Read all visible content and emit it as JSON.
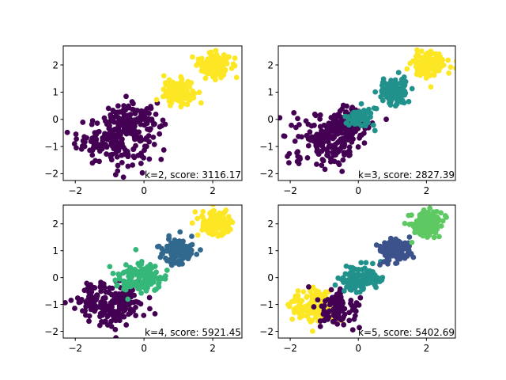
{
  "chart_data": [
    {
      "type": "scatter",
      "k": 2,
      "annotation": "k=2, score: 3116.17",
      "xlim": [
        -2.35,
        2.85
      ],
      "ylim": [
        -2.25,
        2.7
      ],
      "xticks": [
        -2,
        0,
        2
      ],
      "xtick_labels": [
        "−2",
        "0",
        "2"
      ],
      "yticks": [
        -2,
        -1,
        0,
        1,
        2
      ],
      "ytick_labels": [
        "−2",
        "−1",
        "0",
        "1",
        "2"
      ],
      "grid": false,
      "legend": false,
      "colors": [
        "#440154",
        "#fde725"
      ],
      "clusters": [
        {
          "center": [
            -0.85,
            -0.75
          ],
          "spread": [
            0.55,
            0.45
          ],
          "n": 180,
          "color_index": 0
        },
        {
          "center": [
            -0.3,
            -0.05
          ],
          "spread": [
            0.4,
            0.3
          ],
          "n": 110,
          "color_index": 0
        },
        {
          "center": [
            1.0,
            1.0
          ],
          "spread": [
            0.22,
            0.22
          ],
          "n": 140,
          "color_index": 1
        },
        {
          "center": [
            2.05,
            2.0
          ],
          "spread": [
            0.22,
            0.22
          ],
          "n": 160,
          "color_index": 1
        }
      ]
    },
    {
      "type": "scatter",
      "k": 3,
      "annotation": "k=3, score: 2827.39",
      "xlim": [
        -2.35,
        2.85
      ],
      "ylim": [
        -2.25,
        2.7
      ],
      "xticks": [
        -2,
        0,
        2
      ],
      "xtick_labels": [
        "−2",
        "0",
        "2"
      ],
      "yticks": [
        -2,
        -1,
        0,
        1,
        2
      ],
      "ytick_labels": [
        "−2",
        "−1",
        "0",
        "1",
        "2"
      ],
      "grid": false,
      "legend": false,
      "colors": [
        "#440154",
        "#21918c",
        "#fde725"
      ],
      "clusters": [
        {
          "center": [
            -0.85,
            -0.75
          ],
          "spread": [
            0.55,
            0.45
          ],
          "n": 180,
          "color_index": 0
        },
        {
          "center": [
            -0.45,
            -0.1
          ],
          "spread": [
            0.35,
            0.3
          ],
          "n": 80,
          "color_index": 0
        },
        {
          "center": [
            0.05,
            0.05
          ],
          "spread": [
            0.22,
            0.22
          ],
          "n": 60,
          "color_index": 1
        },
        {
          "center": [
            1.05,
            1.0
          ],
          "spread": [
            0.22,
            0.22
          ],
          "n": 140,
          "color_index": 1
        },
        {
          "center": [
            2.05,
            2.0
          ],
          "spread": [
            0.22,
            0.22
          ],
          "n": 160,
          "color_index": 2
        }
      ]
    },
    {
      "type": "scatter",
      "k": 4,
      "annotation": "k=4, score: 5921.45",
      "xlim": [
        -2.35,
        2.85
      ],
      "ylim": [
        -2.25,
        2.7
      ],
      "xticks": [
        -2,
        0,
        2
      ],
      "xtick_labels": [
        "−2",
        "0",
        "2"
      ],
      "yticks": [
        -2,
        -1,
        0,
        1,
        2
      ],
      "ytick_labels": [
        "−2",
        "−1",
        "0",
        "1",
        "2"
      ],
      "grid": false,
      "legend": false,
      "colors": [
        "#440154",
        "#31688e",
        "#35b779",
        "#fde725"
      ],
      "clusters": [
        {
          "center": [
            -0.95,
            -0.95
          ],
          "spread": [
            0.5,
            0.4
          ],
          "n": 200,
          "color_index": 0
        },
        {
          "center": [
            -0.05,
            0.0
          ],
          "spread": [
            0.35,
            0.3
          ],
          "n": 120,
          "color_index": 2
        },
        {
          "center": [
            1.0,
            1.0
          ],
          "spread": [
            0.22,
            0.22
          ],
          "n": 140,
          "color_index": 1
        },
        {
          "center": [
            2.05,
            2.0
          ],
          "spread": [
            0.22,
            0.22
          ],
          "n": 160,
          "color_index": 3
        }
      ]
    },
    {
      "type": "scatter",
      "k": 5,
      "annotation": "k=5, score: 5402.69",
      "xlim": [
        -2.35,
        2.85
      ],
      "ylim": [
        -2.25,
        2.7
      ],
      "xticks": [
        -2,
        0,
        2
      ],
      "xtick_labels": [
        "−2",
        "0",
        "2"
      ],
      "yticks": [
        -2,
        -1,
        0,
        1,
        2
      ],
      "ytick_labels": [
        "−2",
        "−1",
        "0",
        "1",
        "2"
      ],
      "grid": false,
      "legend": false,
      "colors": [
        "#440154",
        "#3b528b",
        "#21918c",
        "#5ec962",
        "#fde725"
      ],
      "clusters": [
        {
          "center": [
            -1.3,
            -1.1
          ],
          "spread": [
            0.35,
            0.35
          ],
          "n": 120,
          "color_index": 4
        },
        {
          "center": [
            -0.6,
            -1.1
          ],
          "spread": [
            0.3,
            0.35
          ],
          "n": 100,
          "color_index": 0
        },
        {
          "center": [
            0.05,
            0.0
          ],
          "spread": [
            0.33,
            0.28
          ],
          "n": 120,
          "color_index": 2
        },
        {
          "center": [
            1.05,
            1.0
          ],
          "spread": [
            0.22,
            0.22
          ],
          "n": 140,
          "color_index": 1
        },
        {
          "center": [
            2.0,
            2.0
          ],
          "spread": [
            0.22,
            0.22
          ],
          "n": 160,
          "color_index": 3
        }
      ]
    }
  ]
}
